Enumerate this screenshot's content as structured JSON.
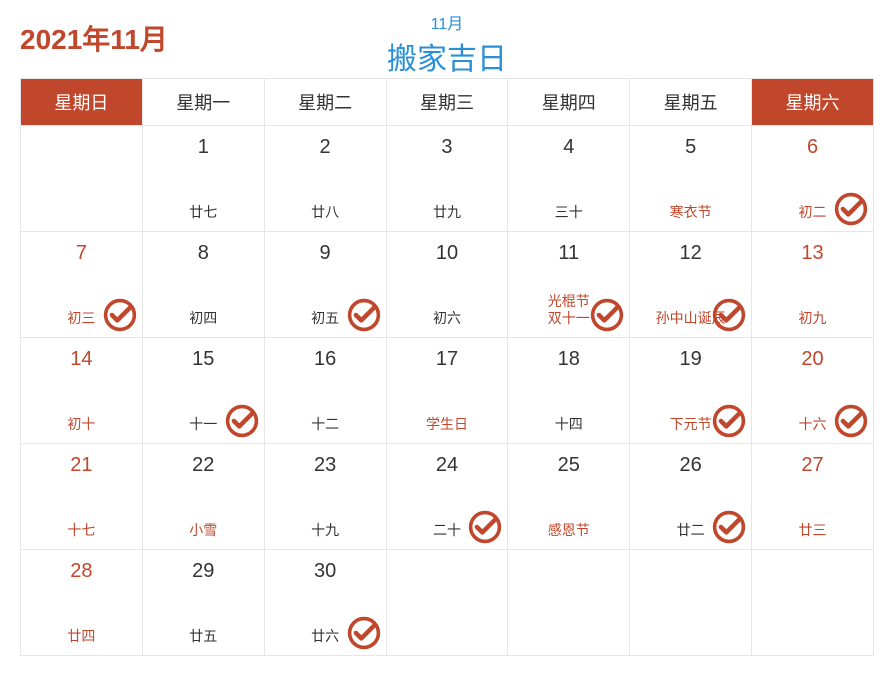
{
  "colors": {
    "accent": "#c0472c",
    "title_blue": "#2a8fd4",
    "grid": "#e6e6e6",
    "text": "#333333",
    "bg": "#ffffff"
  },
  "header": {
    "month_year": "2021年11月",
    "title_sub": "11月",
    "title_main": "搬家吉日"
  },
  "weekday_headers": [
    {
      "label": "星期日",
      "weekend": true
    },
    {
      "label": "星期一",
      "weekend": false
    },
    {
      "label": "星期二",
      "weekend": false
    },
    {
      "label": "星期三",
      "weekend": false
    },
    {
      "label": "星期四",
      "weekend": false
    },
    {
      "label": "星期五",
      "weekend": false
    },
    {
      "label": "星期六",
      "weekend": true
    }
  ],
  "weeks": [
    [
      {
        "day": "",
        "sub": "",
        "lucky": false
      },
      {
        "day": "1",
        "sub": "廿七",
        "lucky": false
      },
      {
        "day": "2",
        "sub": "廿八",
        "lucky": false
      },
      {
        "day": "3",
        "sub": "廿九",
        "lucky": false
      },
      {
        "day": "4",
        "sub": "三十",
        "lucky": false
      },
      {
        "day": "5",
        "sub": "寒衣节",
        "sub_accent": true,
        "lucky": false
      },
      {
        "day": "6",
        "day_accent": true,
        "sub": "初二",
        "sub_accent": true,
        "lucky": true
      }
    ],
    [
      {
        "day": "7",
        "day_accent": true,
        "sub": "初三",
        "sub_accent": true,
        "lucky": true
      },
      {
        "day": "8",
        "sub": "初四",
        "lucky": false
      },
      {
        "day": "9",
        "sub": "初五",
        "lucky": true
      },
      {
        "day": "10",
        "sub": "初六",
        "lucky": false
      },
      {
        "day": "11",
        "sub": "光棍节\n双十一",
        "sub_accent": true,
        "lucky": true
      },
      {
        "day": "12",
        "sub": "孙中山诞辰",
        "sub_accent": true,
        "lucky": true
      },
      {
        "day": "13",
        "day_accent": true,
        "sub": "初九",
        "sub_accent": true,
        "lucky": false
      }
    ],
    [
      {
        "day": "14",
        "day_accent": true,
        "sub": "初十",
        "sub_accent": true,
        "lucky": false
      },
      {
        "day": "15",
        "sub": "十一",
        "lucky": true
      },
      {
        "day": "16",
        "sub": "十二",
        "lucky": false
      },
      {
        "day": "17",
        "sub": "学生日",
        "sub_accent": true,
        "lucky": false
      },
      {
        "day": "18",
        "sub": "十四",
        "lucky": false
      },
      {
        "day": "19",
        "sub": "下元节",
        "sub_accent": true,
        "lucky": true
      },
      {
        "day": "20",
        "day_accent": true,
        "sub": "十六",
        "sub_accent": true,
        "lucky": true
      }
    ],
    [
      {
        "day": "21",
        "day_accent": true,
        "sub": "十七",
        "sub_accent": true,
        "lucky": false
      },
      {
        "day": "22",
        "sub": "小雪",
        "sub_accent": true,
        "lucky": false
      },
      {
        "day": "23",
        "sub": "十九",
        "lucky": false
      },
      {
        "day": "24",
        "sub": "二十",
        "lucky": true
      },
      {
        "day": "25",
        "sub": "感恩节",
        "sub_accent": true,
        "lucky": false
      },
      {
        "day": "26",
        "sub": "廿二",
        "lucky": true
      },
      {
        "day": "27",
        "day_accent": true,
        "sub": "廿三",
        "sub_accent": true,
        "lucky": false
      }
    ],
    [
      {
        "day": "28",
        "day_accent": true,
        "sub": "廿四",
        "sub_accent": true,
        "lucky": false
      },
      {
        "day": "29",
        "sub": "廿五",
        "lucky": false
      },
      {
        "day": "30",
        "sub": "廿六",
        "lucky": true
      },
      {
        "day": "",
        "sub": "",
        "lucky": false
      },
      {
        "day": "",
        "sub": "",
        "lucky": false
      },
      {
        "day": "",
        "sub": "",
        "lucky": false
      },
      {
        "day": "",
        "sub": "",
        "lucky": false
      }
    ]
  ]
}
